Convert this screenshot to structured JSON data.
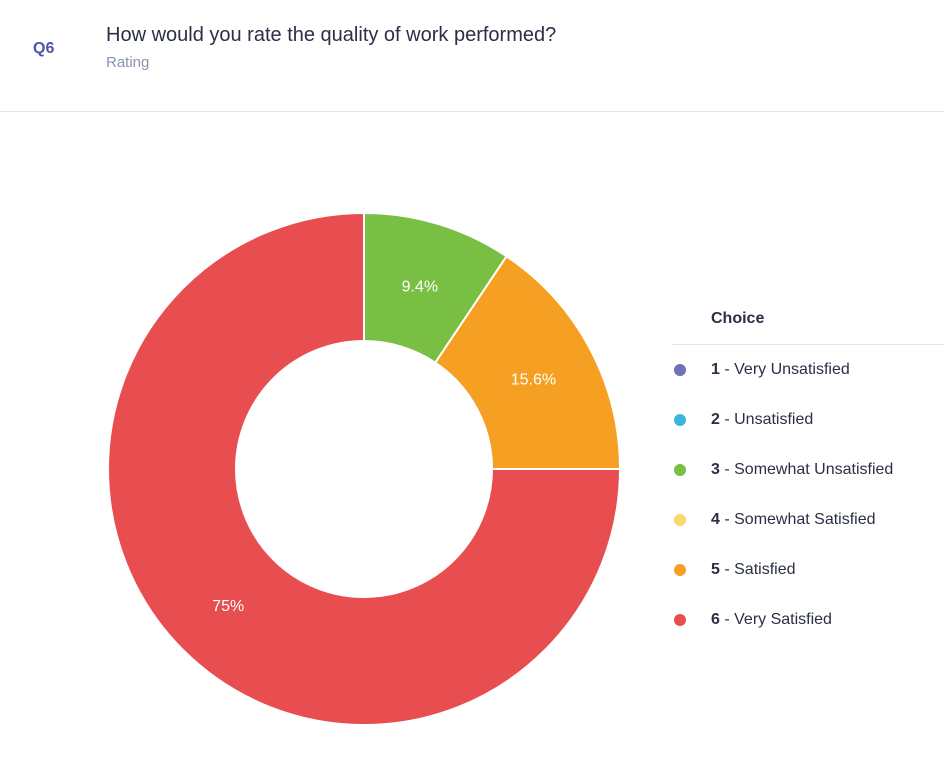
{
  "question": {
    "number": "Q6",
    "title": "How would you rate the quality of work performed?",
    "type": "Rating"
  },
  "legend": {
    "title": "Choice"
  },
  "chart_data": {
    "type": "pie",
    "variant": "donut",
    "categories": [
      "1 - Very Unsatisfied",
      "2 - Unsatisfied",
      "3 - Somewhat Unsatisfied",
      "4 - Somewhat Satisfied",
      "5 - Satisfied",
      "6 - Very Satisfied"
    ],
    "values": [
      0,
      0,
      9.4,
      0,
      15.6,
      75
    ],
    "value_labels": [
      "",
      "",
      "9.4%",
      "",
      "15.6%",
      "75%"
    ],
    "colors": [
      "#6e72b8",
      "#3bb6e3",
      "#78bf43",
      "#f8d86b",
      "#f59f23",
      "#e84e4f"
    ],
    "legend_position": "right"
  }
}
